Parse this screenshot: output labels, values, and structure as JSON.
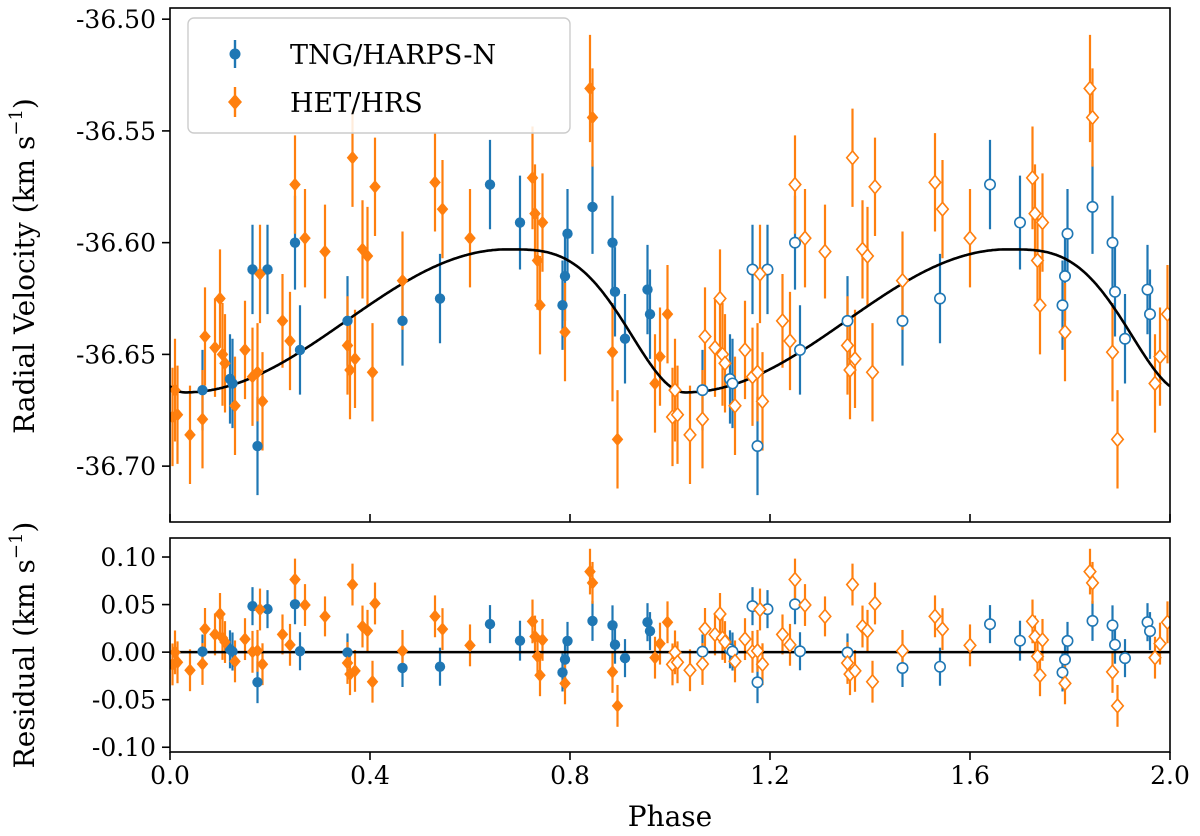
{
  "chart_data": [
    {
      "id": "rv-panel",
      "type": "scatter",
      "xlim": [
        0.0,
        2.0
      ],
      "ylim": [
        -36.725,
        -36.495
      ],
      "ylabel": "Radial Velocity (km s",
      "ylabel_sup": "−1",
      "ylabel_end": ")",
      "xticks": [
        0.0,
        0.4,
        0.8,
        1.2,
        1.6,
        2.0
      ],
      "xtick_labels": [
        "0.0",
        "0.4",
        "0.8",
        "1.2",
        "1.6",
        "2.0"
      ],
      "yticks": [
        -36.7,
        -36.65,
        -36.6,
        -36.55,
        -36.5
      ],
      "ytick_labels": [
        "-36.70",
        "-36.65",
        "-36.60",
        "-36.55",
        "-36.50"
      ],
      "legend_position": "top-left",
      "series": [
        {
          "name": "TNG/HARPS-N",
          "color": "#1f77b4",
          "marker": "circle",
          "points": [
            [
              0.065,
              -36.666,
              0.018
            ],
            [
              0.12,
              -36.661,
              0.02
            ],
            [
              0.125,
              -36.663,
              0.02
            ],
            [
              0.165,
              -36.612,
              0.02
            ],
            [
              0.175,
              -36.691,
              0.022
            ],
            [
              0.195,
              -36.612,
              0.02
            ],
            [
              0.25,
              -36.6,
              0.021
            ],
            [
              0.26,
              -36.648,
              0.02
            ],
            [
              0.355,
              -36.635,
              0.02
            ],
            [
              0.465,
              -36.635,
              0.02
            ],
            [
              0.54,
              -36.625,
              0.02
            ],
            [
              0.64,
              -36.574,
              0.02
            ],
            [
              0.7,
              -36.591,
              0.021
            ],
            [
              0.785,
              -36.628,
              0.02
            ],
            [
              0.79,
              -36.615,
              0.02
            ],
            [
              0.795,
              -36.596,
              0.02
            ],
            [
              0.845,
              -36.584,
              0.021
            ],
            [
              0.885,
              -36.6,
              0.021
            ],
            [
              0.89,
              -36.622,
              0.02
            ],
            [
              0.91,
              -36.643,
              0.02
            ],
            [
              0.955,
              -36.621,
              0.02
            ],
            [
              0.96,
              -36.632,
              0.02
            ]
          ]
        },
        {
          "name": "HET/HRS",
          "color": "#ff7f0e",
          "marker": "diamond",
          "points": [
            [
              0.005,
              -36.678,
              0.022
            ],
            [
              0.01,
              -36.666,
              0.023
            ],
            [
              0.015,
              -36.677,
              0.022
            ],
            [
              0.04,
              -36.686,
              0.022
            ],
            [
              0.065,
              -36.679,
              0.022
            ],
            [
              0.07,
              -36.642,
              0.022
            ],
            [
              0.09,
              -36.647,
              0.022
            ],
            [
              0.1,
              -36.625,
              0.022
            ],
            [
              0.105,
              -36.65,
              0.023
            ],
            [
              0.11,
              -36.654,
              0.022
            ],
            [
              0.13,
              -36.673,
              0.022
            ],
            [
              0.15,
              -36.648,
              0.022
            ],
            [
              0.165,
              -36.66,
              0.022
            ],
            [
              0.175,
              -36.658,
              0.022
            ],
            [
              0.18,
              -36.614,
              0.022
            ],
            [
              0.185,
              -36.671,
              0.022
            ],
            [
              0.225,
              -36.635,
              0.021
            ],
            [
              0.24,
              -36.644,
              0.022
            ],
            [
              0.25,
              -36.574,
              0.022
            ],
            [
              0.27,
              -36.598,
              0.022
            ],
            [
              0.31,
              -36.604,
              0.021
            ],
            [
              0.355,
              -36.646,
              0.022
            ],
            [
              0.36,
              -36.657,
              0.022
            ],
            [
              0.365,
              -36.562,
              0.022
            ],
            [
              0.37,
              -36.652,
              0.022
            ],
            [
              0.385,
              -36.603,
              0.022
            ],
            [
              0.395,
              -36.606,
              0.022
            ],
            [
              0.405,
              -36.658,
              0.022
            ],
            [
              0.41,
              -36.575,
              0.022
            ],
            [
              0.465,
              -36.617,
              0.022
            ],
            [
              0.53,
              -36.573,
              0.022
            ],
            [
              0.545,
              -36.585,
              0.022
            ],
            [
              0.6,
              -36.598,
              0.022
            ],
            [
              0.725,
              -36.571,
              0.023
            ],
            [
              0.73,
              -36.587,
              0.022
            ],
            [
              0.735,
              -36.608,
              0.022
            ],
            [
              0.74,
              -36.628,
              0.022
            ],
            [
              0.745,
              -36.591,
              0.022
            ],
            [
              0.79,
              -36.64,
              0.022
            ],
            [
              0.84,
              -36.531,
              0.024
            ],
            [
              0.845,
              -36.544,
              0.022
            ],
            [
              0.885,
              -36.649,
              0.022
            ],
            [
              0.895,
              -36.688,
              0.022
            ],
            [
              0.97,
              -36.663,
              0.022
            ],
            [
              0.98,
              -36.651,
              0.022
            ],
            [
              0.995,
              -36.632,
              0.022
            ]
          ]
        }
      ],
      "model_curve": {
        "color": "#000000",
        "period_phase": 1.0,
        "min_phase": 0.03,
        "min_value": -36.667,
        "max_phase": 0.675,
        "max_value": -36.603
      },
      "note": "Data for phase 1.0-2.0 repeat phase 0.0-1.0 shifted by +1, drawn with open markers."
    },
    {
      "id": "residual-panel",
      "type": "scatter",
      "xlim": [
        0.0,
        2.0
      ],
      "ylim": [
        -0.105,
        0.12
      ],
      "xlabel": "Phase",
      "ylabel": "Residual (km s",
      "ylabel_sup": "−1",
      "ylabel_end": ")",
      "yticks": [
        -0.1,
        -0.05,
        0.0,
        0.05,
        0.1
      ],
      "ytick_labels": [
        "-0.10",
        "-0.05",
        "0.00",
        "0.05",
        "0.10"
      ],
      "zero_line": 0.0
    }
  ]
}
